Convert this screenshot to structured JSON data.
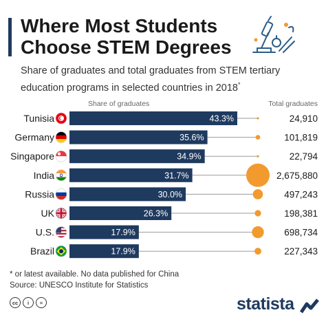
{
  "header": {
    "title_line1": "Where Most Students",
    "title_line2": "Choose STEM Degrees",
    "subtitle_line1": "Share of graduates and total graduates from STEM tertiary",
    "subtitle_line2": "education programs in selected countries in 2018",
    "subtitle_mark": "*"
  },
  "notes": {
    "footnote": "* or latest available. No data published for China",
    "source": "Source: UNESCO Institute for Statistics"
  },
  "branding": {
    "logo_text": "statista",
    "license_icons": [
      "cc",
      "i",
      "="
    ]
  },
  "colors": {
    "bar": "#1f3a5f",
    "bubble": "#f29a2e",
    "title_accent": "#1f3a5f",
    "connector": "#9a9a9a"
  },
  "chart_data": {
    "type": "bar",
    "orientation": "horizontal",
    "share_header": "Share of graduates",
    "total_header": "Total graduates",
    "categories": [
      "Tunisia",
      "Germany",
      "Singapore",
      "India",
      "Russia",
      "UK",
      "U.S.",
      "Brazil"
    ],
    "flags": [
      "tunisia",
      "germany",
      "singapore",
      "india",
      "russia",
      "uk",
      "us",
      "brazil"
    ],
    "series": [
      {
        "name": "Share of graduates",
        "values": [
          43.3,
          35.6,
          34.9,
          31.7,
          30.0,
          26.3,
          17.9,
          17.9
        ],
        "labels": [
          "43.3%",
          "35.6%",
          "34.9%",
          "31.7%",
          "30.0%",
          "26.3%",
          "17.9%",
          "17.9%"
        ]
      },
      {
        "name": "Total graduates",
        "values": [
          24910,
          101819,
          22794,
          2675880,
          497243,
          198381,
          698734,
          227343
        ],
        "labels": [
          "24,910",
          "101,819",
          "22,794",
          "2,675,880",
          "497,243",
          "198,381",
          "698,734",
          "227,343"
        ]
      }
    ],
    "xlim": [
      0,
      43.3
    ],
    "grid": false,
    "legend": "none"
  }
}
